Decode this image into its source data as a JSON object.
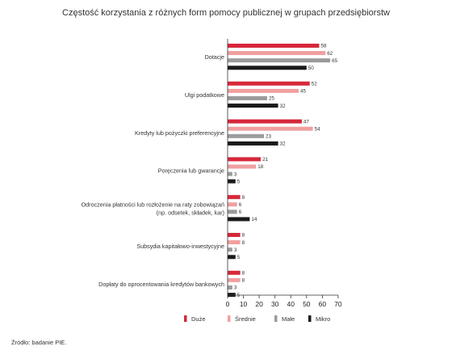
{
  "chart_data": {
    "type": "bar",
    "orientation": "horizontal",
    "title": "Częstość korzystania z różnych form pomocy publicznej w grupach przedsiębiorstw",
    "categories": [
      [
        "Dotacje"
      ],
      [
        "Ulgi podatkowe"
      ],
      [
        "Kredyty lub pożyczki preferencyjne"
      ],
      [
        "Poręczenia lub gwarancje"
      ],
      [
        "Odroczenia płatności lub rozłożenie na raty zobowiązań",
        "(np. odsetek, składek, kar)"
      ],
      [
        "Subsydia kapitałowo-inwestycyjne"
      ],
      [
        "Dopłaty do oprocentowania kredytów bankowych"
      ]
    ],
    "series": [
      {
        "name": "Duże",
        "color": "#d6283a",
        "values": [
          58,
          52,
          47,
          21,
          8,
          8,
          8
        ]
      },
      {
        "name": "Średnie",
        "color": "#f0a0a0",
        "values": [
          62,
          45,
          54,
          18,
          6,
          8,
          8
        ]
      },
      {
        "name": "Małe",
        "color": "#9b9b9b",
        "values": [
          65,
          25,
          23,
          3,
          6,
          3,
          3
        ]
      },
      {
        "name": "Mikro",
        "color": "#1a1a1a",
        "values": [
          50,
          32,
          32,
          5,
          14,
          5,
          5
        ]
      }
    ],
    "x_ticks": [
      0,
      10,
      20,
      30,
      40,
      50,
      60,
      70
    ],
    "xlim": [
      0,
      70
    ],
    "grid": false,
    "legend_position": "bottom"
  },
  "source": "Źródło: badanie PIE."
}
